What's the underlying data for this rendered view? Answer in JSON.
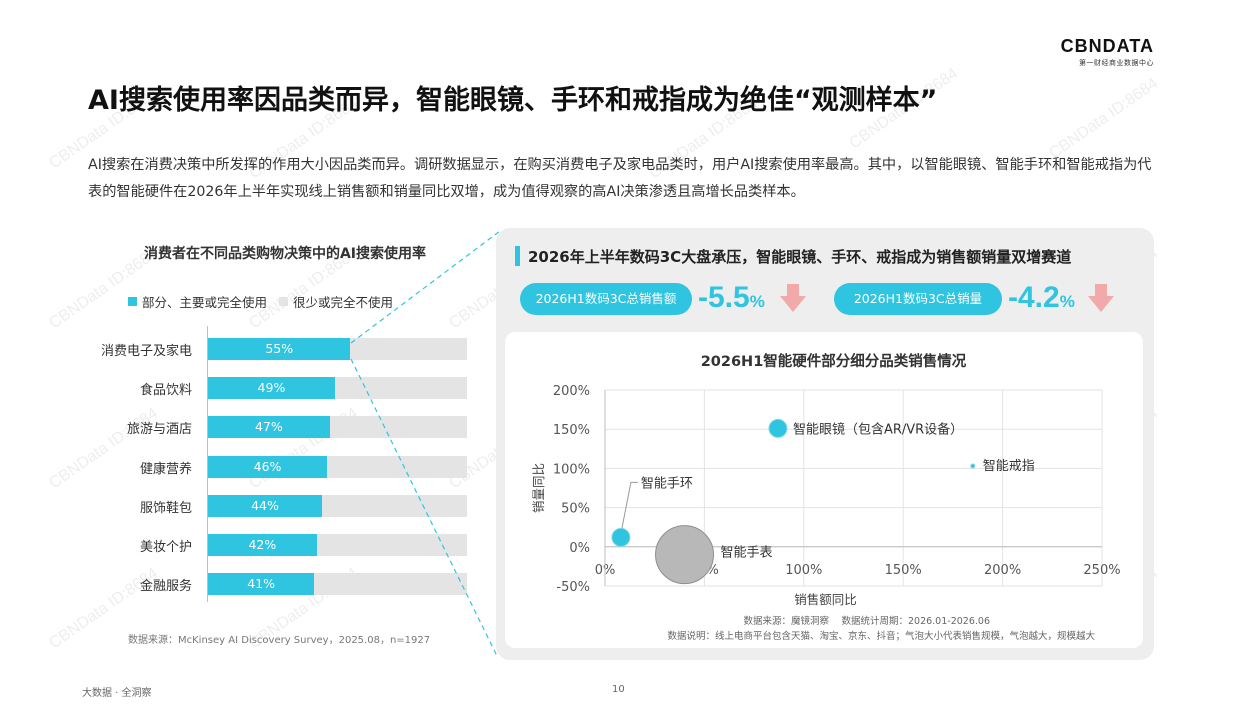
{
  "logo": {
    "brand": "CBNDATA",
    "sub": "第一财经商业数据中心"
  },
  "title": "AI搜索使用率因品类而异，智能眼镜、手环和戒指成为绝佳“观测样本”",
  "intro": "AI搜索在消费决策中所发挥的作用大小因品类而异。调研数据显示，在购买消费电子及家电品类时，用户AI搜索使用率最高。其中，以智能眼镜、智能手环和智能戒指为代表的智能硬件在2026年上半年实现线上销售额和销量同比双增，成为值得观察的高AI决策渗透且高增长品类样本。",
  "watermark": "CBNData ID:8684",
  "left_chart": {
    "title": "消费者在不同品类购物决策中的AI搜索使用率",
    "legend": [
      "部分、主要或完全使用",
      "很少或完全不使用"
    ],
    "source": "数据来源：McKinsey AI Discovery Survey，2025.08，n=1927"
  },
  "right_panel": {
    "heading": "2026年上半年数码3C大盘承压，智能眼镜、手环、戒指成为销售额销量双增赛道",
    "kpi1": {
      "label": "2026H1数码3C总销售额",
      "value": "-5.5",
      "unit": "%"
    },
    "kpi2": {
      "label": "2026H1数码3C总销量",
      "value": "-4.2",
      "unit": "%"
    },
    "chart_title": "2026H1智能硬件部分细分品类销售情况",
    "source1": "数据来源：魔镜洞察　 数据统计周期：2026.01-2026.06",
    "source2": "数据说明：线上电商平台包含天猫、淘宝、京东、抖音；气泡大小代表销售规模，气泡越大，规模越大"
  },
  "chart_data": [
    {
      "type": "bar",
      "title": "消费者在不同品类购物决策中的AI搜索使用率",
      "categories": [
        "消费电子及家电",
        "食品饮料",
        "旅游与酒店",
        "健康营养",
        "服饰鞋包",
        "美妆个护",
        "金融服务"
      ],
      "series": [
        {
          "name": "部分、主要或完全使用",
          "values": [
            55,
            49,
            47,
            46,
            44,
            42,
            41
          ],
          "color": "#2fc4e0"
        },
        {
          "name": "很少或完全不使用",
          "values": [
            45,
            51,
            53,
            54,
            56,
            58,
            59
          ],
          "color": "#e4e4e4"
        }
      ],
      "value_labels": [
        "55%",
        "49%",
        "47%",
        "46%",
        "44%",
        "42%",
        "41%"
      ],
      "stacked": true,
      "orientation": "horizontal"
    },
    {
      "type": "scatter",
      "title": "2026H1智能硬件部分细分品类销售情况",
      "xlabel": "销售额同比",
      "ylabel": "销量同比",
      "xlim": [
        0,
        250
      ],
      "ylim": [
        -50,
        200
      ],
      "xticks": [
        "0%",
        "50%",
        "100%",
        "150%",
        "200%",
        "250%"
      ],
      "yticks": [
        "-50%",
        "0%",
        "50%",
        "100%",
        "150%",
        "200%"
      ],
      "grid": true,
      "points": [
        {
          "name": "智能眼镜（包含AR/VR设备）",
          "x": 87,
          "y": 151,
          "size": "small",
          "color": "#2fc4e0"
        },
        {
          "name": "智能戒指",
          "x": 185,
          "y": 103,
          "size": "tiny",
          "color": "#2fc4e0"
        },
        {
          "name": "智能手环",
          "x": 8,
          "y": 12,
          "size": "small",
          "color": "#2fc4e0"
        },
        {
          "name": "智能手表",
          "x": 40,
          "y": -10,
          "size": "large",
          "color": "#b8b8b8"
        }
      ]
    }
  ],
  "footer": {
    "left": "大数据 · 全洞察",
    "page": "10"
  }
}
